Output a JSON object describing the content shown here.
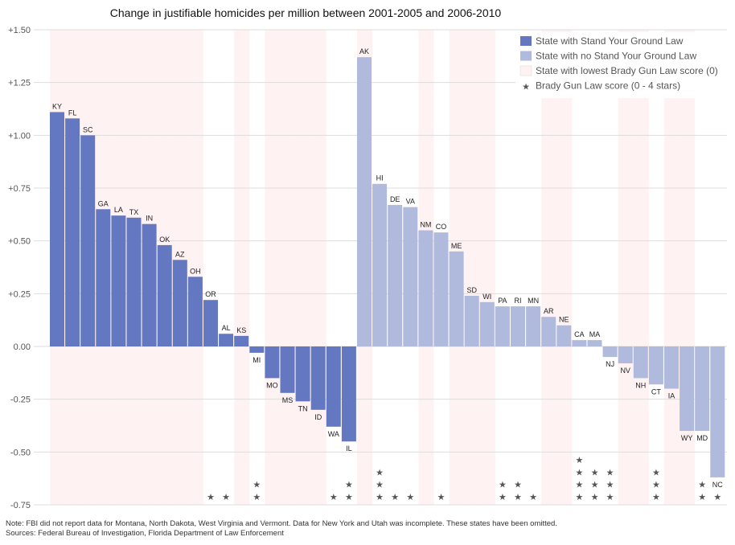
{
  "chart_data": {
    "type": "bar",
    "title": "Change in justifiable homicides per million between 2001-2005 and 2006-2010",
    "xlabel": "",
    "ylabel": "",
    "ylim": [
      -0.75,
      1.5
    ],
    "yticks": [
      {
        "value": 1.5,
        "label": "+1.50"
      },
      {
        "value": 1.25,
        "label": "+1.25"
      },
      {
        "value": 1.0,
        "label": "+1.00"
      },
      {
        "value": 0.75,
        "label": "+0.75"
      },
      {
        "value": 0.5,
        "label": "+0.50"
      },
      {
        "value": 0.25,
        "label": "+0.25"
      },
      {
        "value": 0.0,
        "label": "0.00"
      },
      {
        "value": -0.25,
        "label": "-0.25"
      },
      {
        "value": -0.5,
        "label": "-0.50"
      },
      {
        "value": -0.75,
        "label": "-0.75"
      }
    ],
    "grid": true,
    "legend_position": "top-right",
    "colors": {
      "syg": "#6378c0",
      "no_syg": "#b0badc",
      "lowest_brady": "#fff2f2",
      "star": "#555555",
      "grid": "#dddddd"
    },
    "legend": [
      {
        "key": "syg",
        "label": "State with Stand Your Ground Law",
        "icon": "square"
      },
      {
        "key": "no_syg",
        "label": "State with no Stand Your Ground Law",
        "icon": "square"
      },
      {
        "key": "lowest_brady",
        "label": "State with lowest Brady Gun Law score (0)",
        "icon": "square"
      },
      {
        "key": "star",
        "label": "Brady Gun Law score (0 - 4 stars)",
        "icon": "star-icon"
      }
    ],
    "states": [
      {
        "state": "KY",
        "value": 1.11,
        "syg": true,
        "brady_stars": 0
      },
      {
        "state": "FL",
        "value": 1.08,
        "syg": true,
        "brady_stars": 0
      },
      {
        "state": "SC",
        "value": 1.0,
        "syg": true,
        "brady_stars": 0
      },
      {
        "state": "GA",
        "value": 0.65,
        "syg": true,
        "brady_stars": 0
      },
      {
        "state": "LA",
        "value": 0.62,
        "syg": true,
        "brady_stars": 0
      },
      {
        "state": "TX",
        "value": 0.61,
        "syg": true,
        "brady_stars": 0
      },
      {
        "state": "IN",
        "value": 0.58,
        "syg": true,
        "brady_stars": 0
      },
      {
        "state": "OK",
        "value": 0.48,
        "syg": true,
        "brady_stars": 0
      },
      {
        "state": "AZ",
        "value": 0.41,
        "syg": true,
        "brady_stars": 0
      },
      {
        "state": "OH",
        "value": 0.33,
        "syg": true,
        "brady_stars": 0
      },
      {
        "state": "OR",
        "value": 0.22,
        "syg": true,
        "brady_stars": 1
      },
      {
        "state": "AL",
        "value": 0.06,
        "syg": true,
        "brady_stars": 1
      },
      {
        "state": "KS",
        "value": 0.05,
        "syg": true,
        "brady_stars": 0
      },
      {
        "state": "MI",
        "value": -0.03,
        "syg": true,
        "brady_stars": 2
      },
      {
        "state": "MO",
        "value": -0.15,
        "syg": true,
        "brady_stars": 0
      },
      {
        "state": "MS",
        "value": -0.22,
        "syg": true,
        "brady_stars": 0
      },
      {
        "state": "TN",
        "value": -0.26,
        "syg": true,
        "brady_stars": 0
      },
      {
        "state": "ID",
        "value": -0.3,
        "syg": true,
        "brady_stars": 0
      },
      {
        "state": "WA",
        "value": -0.38,
        "syg": true,
        "brady_stars": 1
      },
      {
        "state": "IL",
        "value": -0.45,
        "syg": true,
        "brady_stars": 2
      },
      {
        "state": "AK",
        "value": 1.37,
        "syg": false,
        "brady_stars": 0
      },
      {
        "state": "HI",
        "value": 0.77,
        "syg": false,
        "brady_stars": 3
      },
      {
        "state": "DE",
        "value": 0.67,
        "syg": false,
        "brady_stars": 1
      },
      {
        "state": "VA",
        "value": 0.66,
        "syg": false,
        "brady_stars": 1
      },
      {
        "state": "NM",
        "value": 0.55,
        "syg": false,
        "brady_stars": 0
      },
      {
        "state": "CO",
        "value": 0.54,
        "syg": false,
        "brady_stars": 1
      },
      {
        "state": "ME",
        "value": 0.45,
        "syg": false,
        "brady_stars": 0
      },
      {
        "state": "SD",
        "value": 0.24,
        "syg": false,
        "brady_stars": 0
      },
      {
        "state": "WI",
        "value": 0.21,
        "syg": false,
        "brady_stars": 0
      },
      {
        "state": "PA",
        "value": 0.19,
        "syg": false,
        "brady_stars": 2
      },
      {
        "state": "RI",
        "value": 0.19,
        "syg": false,
        "brady_stars": 2
      },
      {
        "state": "MN",
        "value": 0.19,
        "syg": false,
        "brady_stars": 1
      },
      {
        "state": "AR",
        "value": 0.14,
        "syg": false,
        "brady_stars": 0
      },
      {
        "state": "NE",
        "value": 0.1,
        "syg": false,
        "brady_stars": 0
      },
      {
        "state": "CA",
        "value": 0.03,
        "syg": false,
        "brady_stars": 4
      },
      {
        "state": "MA",
        "value": 0.03,
        "syg": false,
        "brady_stars": 3
      },
      {
        "state": "NJ",
        "value": -0.05,
        "syg": false,
        "brady_stars": 3
      },
      {
        "state": "NV",
        "value": -0.08,
        "syg": false,
        "brady_stars": 0
      },
      {
        "state": "NH",
        "value": -0.15,
        "syg": false,
        "brady_stars": 0
      },
      {
        "state": "CT",
        "value": -0.18,
        "syg": false,
        "brady_stars": 3
      },
      {
        "state": "IA",
        "value": -0.2,
        "syg": false,
        "brady_stars": 0
      },
      {
        "state": "WY",
        "value": -0.4,
        "syg": false,
        "brady_stars": 0
      },
      {
        "state": "MD",
        "value": -0.4,
        "syg": false,
        "brady_stars": 2
      },
      {
        "state": "NC",
        "value": -0.62,
        "syg": false,
        "brady_stars": 1
      }
    ],
    "star_glyph": "★"
  },
  "notes": {
    "note": "Note: FBI did not report data for Montana, North Dakota, West Virginia and Vermont. Data for New York and Utah was incomplete. These states have been omitted.",
    "sources": "Sources: Federal Bureau of Investigation, Florida Department of Law Enforcement"
  }
}
